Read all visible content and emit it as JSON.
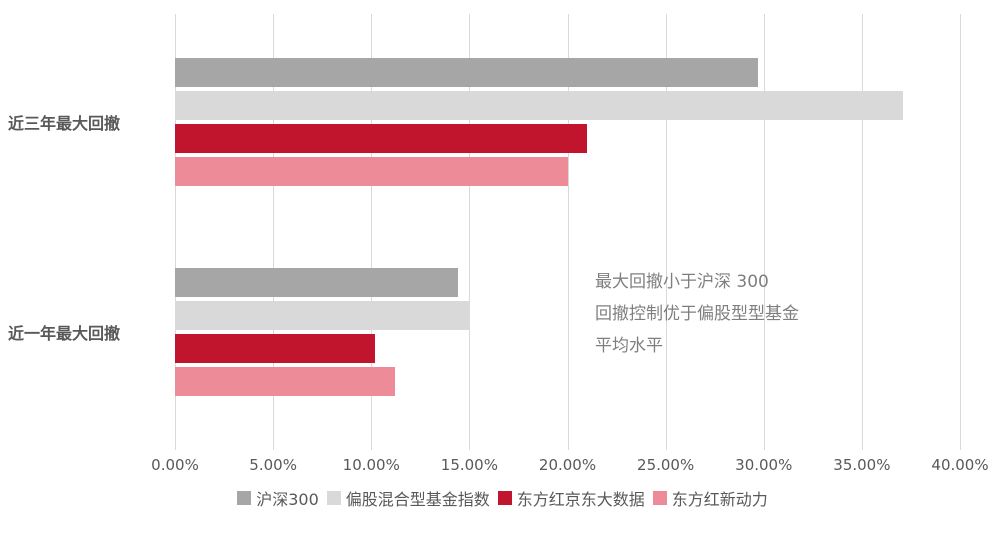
{
  "chart_data": {
    "type": "bar",
    "orientation": "horizontal",
    "categories": [
      "近三年最大回撤",
      "近一年最大回撤"
    ],
    "series": [
      {
        "name": "沪深300",
        "color": "#a6a6a6",
        "values": [
          29.7,
          14.4
        ]
      },
      {
        "name": "偏股混合型基金指数",
        "color": "#d9d9d9",
        "values": [
          37.1,
          15.0
        ]
      },
      {
        "name": "东方红京东大数据",
        "color": "#c1152e",
        "values": [
          21.0,
          10.2
        ]
      },
      {
        "name": "东方红新动力",
        "color": "#ee8b99",
        "values": [
          20.0,
          11.2
        ]
      }
    ],
    "x_ticks": [
      "0.00%",
      "5.00%",
      "10.00%",
      "15.00%",
      "20.00%",
      "25.00%",
      "30.00%",
      "35.00%",
      "40.00%"
    ],
    "grid_values": [
      0,
      5,
      10,
      15,
      20,
      25,
      30,
      35,
      40
    ],
    "xlim": [
      0,
      40
    ],
    "grid": true,
    "legend_position": "bottom",
    "annotation_lines": [
      "最大回撤小于沪深 300",
      "回撤控制优于偏股型型基金",
      "平均水平"
    ],
    "colors": {
      "gridline": "#d9d9d9",
      "axis_text": "#595959",
      "annotation_text": "#7f7f7f"
    }
  }
}
